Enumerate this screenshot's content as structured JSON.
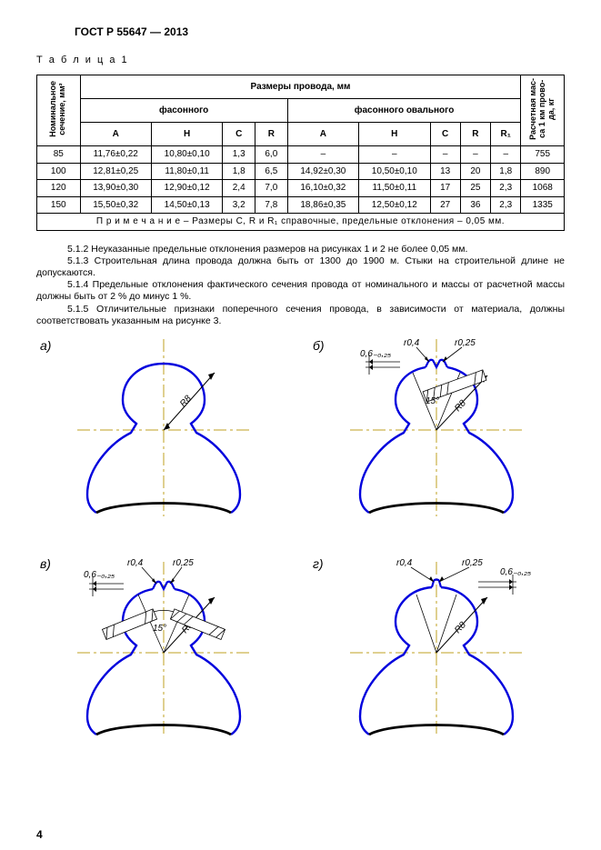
{
  "header": {
    "doc_title": "ГОСТ Р 55647 — 2013"
  },
  "table": {
    "caption": "Т а б л и ц а   1",
    "super_header": "Размеры провода, мм",
    "group1": "фасонного",
    "group2": "фасонного овального",
    "rot_col_left_l1": "Номинальное",
    "rot_col_left_l2": "сечение, мм²",
    "rot_col_right_l1": "Расчетная мас-",
    "rot_col_right_l2": "са 1 км прово-",
    "rot_col_right_l3": "да, кг",
    "cols": {
      "A": "A",
      "H": "H",
      "C": "C",
      "R": "R",
      "R1": "R₁"
    },
    "rows": [
      {
        "nom": "85",
        "a": "11,76±0,22",
        "h": "10,80±0,10",
        "c": "1,3",
        "r": "6,0",
        "a2": "–",
        "h2": "–",
        "c2": "–",
        "r2": "–",
        "r1": "–",
        "mass": "755"
      },
      {
        "nom": "100",
        "a": "12,81±0,25",
        "h": "11,80±0,11",
        "c": "1,8",
        "r": "6,5",
        "a2": "14,92±0,30",
        "h2": "10,50±0,10",
        "c2": "13",
        "r2": "20",
        "r1": "1,8",
        "mass": "890"
      },
      {
        "nom": "120",
        "a": "13,90±0,30",
        "h": "12,90±0,12",
        "c": "2,4",
        "r": "7,0",
        "a2": "16,10±0,32",
        "h2": "11,50±0,11",
        "c2": "17",
        "r2": "25",
        "r1": "2,3",
        "mass": "1068"
      },
      {
        "nom": "150",
        "a": "15,50±0,32",
        "h": "14,50±0,13",
        "c": "3,2",
        "r": "7,8",
        "a2": "18,86±0,35",
        "h2": "12,50±0,12",
        "c2": "27",
        "r2": "36",
        "r1": "2,3",
        "mass": "1335"
      }
    ],
    "note": "П р и м е ч а н и е   –  Размеры С, R и R₁ справочные, предельные отклонения – 0,05 мм."
  },
  "body": {
    "p512": "5.1.2 Неуказанные предельные отклонения размеров на рисунках 1 и 2 не более 0,05 мм.",
    "p513": "5.1.3 Строительная длина провода должна быть от 1300 до 1900 м. Стыки на строительной длине не допускаются.",
    "p514": "5.1.4 Предельные отклонения фактического сечения провода от номинального и массы от расчетной массы должны быть от 2 % до минус 1 %.",
    "p515": "5.1.5 Отличительные признаки поперечного сечения провода, в зависимости от материала, должны соответствовать указанным на рисунке 3."
  },
  "figures": {
    "labels": {
      "a": "а)",
      "b": "б)",
      "v": "в)",
      "g": "г)"
    },
    "dims": {
      "r04": "r0,4",
      "r025": "r0,25",
      "d06": "0,6₋₀,₂₅",
      "ang15": "15°",
      "R8": "R8"
    },
    "colors": {
      "outline": "#0000dd",
      "base": "#000000",
      "axis": "#bfa020",
      "refline": "#000000",
      "hatch": "#000000"
    }
  },
  "pagenum": "4"
}
